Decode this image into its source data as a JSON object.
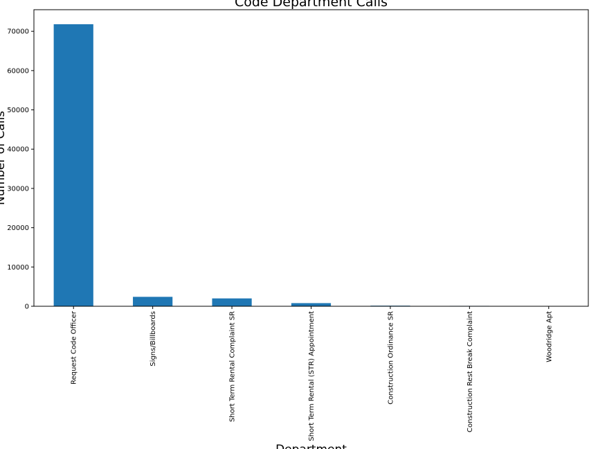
{
  "chart_data": {
    "type": "bar",
    "title": "Code Department Calls",
    "xlabel": "Department",
    "ylabel": "Number of Calls",
    "categories": [
      "Request Code Officer",
      "Signs/Billboards",
      "Short Term Rental Complaint SR",
      "Short Term Rental (STR) Appointment",
      "Construction Ordinance SR",
      "Construction Rest Break Complaint",
      "Woodridge Apt"
    ],
    "values": [
      71800,
      2400,
      2000,
      800,
      150,
      100,
      10
    ],
    "ylim": [
      0,
      75500
    ],
    "yticks": [
      0,
      10000,
      20000,
      30000,
      40000,
      50000,
      60000,
      70000
    ],
    "bar_color": "#1f77b4",
    "grid": false,
    "legend": "none"
  }
}
